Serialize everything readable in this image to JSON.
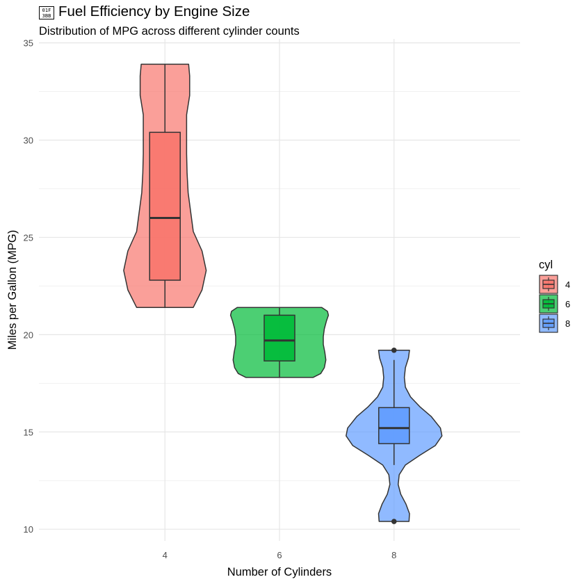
{
  "title": {
    "icon_name": "fuel-pump-emoji-icon",
    "icon_fallback_text": "01F\n3BB",
    "text": "Fuel Efficiency by Engine Size"
  },
  "subtitle": "Distribution of MPG across different cylinder counts",
  "chart_data": {
    "type": "violin",
    "title": "Fuel Efficiency by Engine Size",
    "subtitle": "Distribution of MPG across different cylinder counts",
    "xlabel": "Number of Cylinders",
    "ylabel": "Miles per Gallon (MPG)",
    "categories": [
      "4",
      "6",
      "8"
    ],
    "ylim": [
      9.4,
      35.2
    ],
    "yticks": [
      10,
      15,
      20,
      25,
      30,
      35
    ],
    "grid": true,
    "legend": {
      "title": "cyl",
      "position": "right",
      "entries": [
        "4",
        "6",
        "8"
      ]
    },
    "series": [
      {
        "name": "4",
        "color": "#F8766D",
        "min": 21.4,
        "q1": 22.8,
        "median": 26.0,
        "q3": 30.4,
        "max": 33.9,
        "whisker_low": 21.4,
        "whisker_high": 33.9,
        "outliers": [],
        "density": [
          [
            21.4,
            0.55
          ],
          [
            22.3,
            0.72
          ],
          [
            23.3,
            0.8
          ],
          [
            24.3,
            0.72
          ],
          [
            25.3,
            0.55
          ],
          [
            26.3,
            0.5
          ],
          [
            27.3,
            0.45
          ],
          [
            28.3,
            0.43
          ],
          [
            29.3,
            0.42
          ],
          [
            30.3,
            0.42
          ],
          [
            31.3,
            0.42
          ],
          [
            32.3,
            0.48
          ],
          [
            33.3,
            0.48
          ],
          [
            33.9,
            0.46
          ]
        ]
      },
      {
        "name": "6",
        "color": "#00BA38",
        "min": 17.8,
        "q1": 18.65,
        "median": 19.7,
        "q3": 21.0,
        "max": 21.4,
        "whisker_low": 17.8,
        "whisker_high": 21.4,
        "outliers": [],
        "density": [
          [
            17.8,
            0.65
          ],
          [
            18.0,
            0.8
          ],
          [
            18.3,
            0.87
          ],
          [
            18.7,
            0.9
          ],
          [
            19.1,
            0.88
          ],
          [
            19.5,
            0.85
          ],
          [
            19.9,
            0.85
          ],
          [
            20.3,
            0.87
          ],
          [
            20.7,
            0.91
          ],
          [
            21.0,
            0.95
          ],
          [
            21.2,
            0.93
          ],
          [
            21.4,
            0.82
          ]
        ]
      },
      {
        "name": "8",
        "color": "#619CFF",
        "min": 10.4,
        "q1": 14.4,
        "median": 15.2,
        "q3": 16.25,
        "max": 19.2,
        "whisker_low": 13.3,
        "whisker_high": 18.7,
        "outliers": [
          10.4,
          19.2
        ],
        "density": [
          [
            10.4,
            0.29
          ],
          [
            10.8,
            0.3
          ],
          [
            11.3,
            0.23
          ],
          [
            11.8,
            0.13
          ],
          [
            12.3,
            0.08
          ],
          [
            12.8,
            0.1
          ],
          [
            13.3,
            0.22
          ],
          [
            13.8,
            0.5
          ],
          [
            14.3,
            0.8
          ],
          [
            14.8,
            0.93
          ],
          [
            15.2,
            0.9
          ],
          [
            15.8,
            0.72
          ],
          [
            16.3,
            0.5
          ],
          [
            16.8,
            0.32
          ],
          [
            17.3,
            0.22
          ],
          [
            17.8,
            0.2
          ],
          [
            18.3,
            0.22
          ],
          [
            18.8,
            0.28
          ],
          [
            19.2,
            0.3
          ]
        ]
      }
    ]
  }
}
